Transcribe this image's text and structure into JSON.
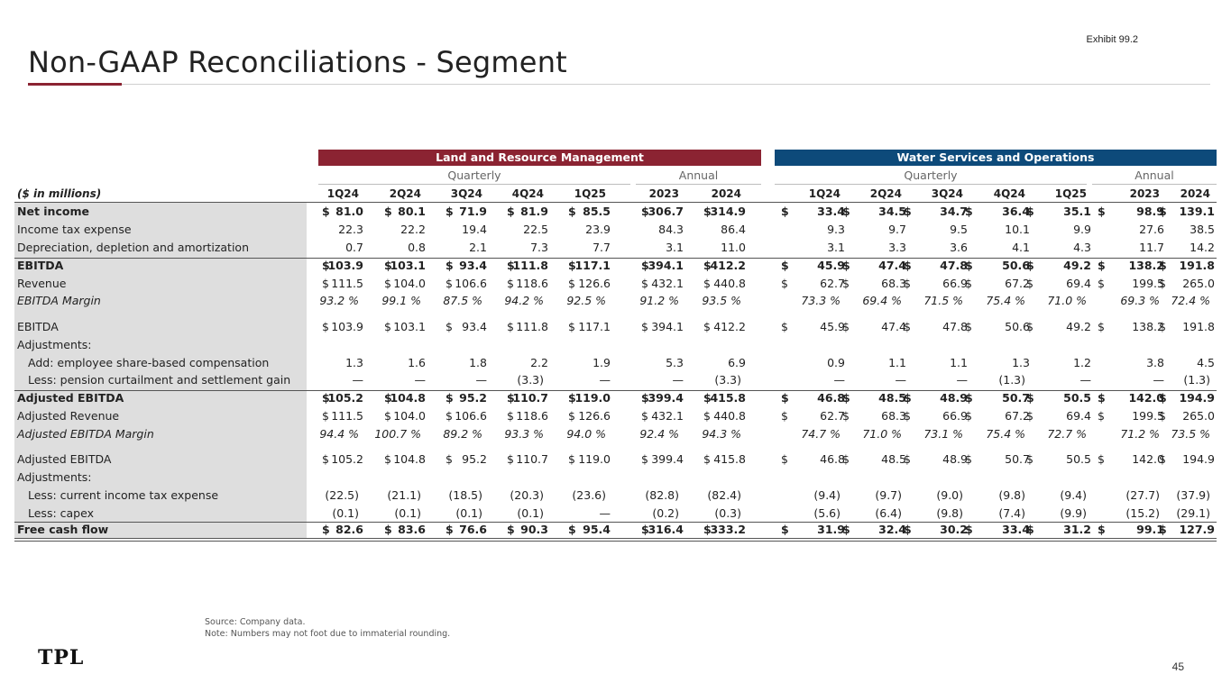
{
  "exhibit": "Exhibit 99.2",
  "title": "Non-GAAP Reconciliations - Segment",
  "segments": {
    "land": "Land and Resource Management",
    "water": "Water Services and Operations"
  },
  "subheads": {
    "quarterly": "Quarterly",
    "annual": "Annual"
  },
  "units_label": "($ in millions)",
  "columns": [
    "1Q24",
    "2Q24",
    "3Q24",
    "4Q24",
    "1Q25",
    "2023",
    "2024",
    "1Q24",
    "2Q24",
    "3Q24",
    "4Q24",
    "1Q25",
    "2023",
    "2024"
  ],
  "rows": [
    {
      "label": "Net income",
      "style": "bold",
      "dollar": true,
      "values": [
        "81.0",
        "80.1",
        "71.9",
        "81.9",
        "85.5",
        "306.7",
        "314.9",
        "33.4",
        "34.5",
        "34.7",
        "36.4",
        "35.1",
        "98.9",
        "139.1"
      ]
    },
    {
      "label": "Income tax expense",
      "style": "",
      "dollar": false,
      "values": [
        "22.3",
        "22.2",
        "19.4",
        "22.5",
        "23.9",
        "84.3",
        "86.4",
        "9.3",
        "9.7",
        "9.5",
        "10.1",
        "9.9",
        "27.6",
        "38.5"
      ]
    },
    {
      "label": "Depreciation, depletion and amortization",
      "style": "",
      "dollar": false,
      "values": [
        "0.7",
        "0.8",
        "2.1",
        "7.3",
        "7.7",
        "3.1",
        "11.0",
        "3.1",
        "3.3",
        "3.6",
        "4.1",
        "4.3",
        "11.7",
        "14.2"
      ]
    },
    {
      "label": "EBITDA",
      "style": "bold",
      "dollar": true,
      "values": [
        "103.9",
        "103.1",
        "93.4",
        "111.8",
        "117.1",
        "394.1",
        "412.2",
        "45.9",
        "47.4",
        "47.8",
        "50.6",
        "49.2",
        "138.2",
        "191.8"
      ]
    },
    {
      "label": "Revenue",
      "style": "",
      "dollar": true,
      "values": [
        "111.5",
        "104.0",
        "106.6",
        "118.6",
        "126.6",
        "432.1",
        "440.8",
        "62.7",
        "68.3",
        "66.9",
        "67.2",
        "69.4",
        "199.5",
        "265.0"
      ]
    },
    {
      "label": "EBITDA Margin",
      "style": "ital",
      "dollar": false,
      "values": [
        "93.2 %",
        "99.1 %",
        "87.5 %",
        "94.2 %",
        "92.5 %",
        "91.2 %",
        "93.5 %",
        "73.3 %",
        "69.4 %",
        "71.5 %",
        "75.4 %",
        "71.0 %",
        "69.3 %",
        "72.4 %"
      ]
    },
    {
      "label": "EBITDA",
      "style": "",
      "dollar": true,
      "values": [
        "103.9",
        "103.1",
        "93.4",
        "111.8",
        "117.1",
        "394.1",
        "412.2",
        "45.9",
        "47.4",
        "47.8",
        "50.6",
        "49.2",
        "138.2",
        "191.8"
      ]
    },
    {
      "label": "Adjustments:",
      "style": "",
      "dollar": false,
      "values": [
        "",
        "",
        "",
        "",
        "",
        "",
        "",
        "",
        "",
        "",
        "",
        "",
        "",
        ""
      ]
    },
    {
      "label": "Add: employee share-based compensation",
      "style": "indent",
      "dollar": false,
      "values": [
        "1.3",
        "1.6",
        "1.8",
        "2.2",
        "1.9",
        "5.3",
        "6.9",
        "0.9",
        "1.1",
        "1.1",
        "1.3",
        "1.2",
        "3.8",
        "4.5"
      ]
    },
    {
      "label": "Less: pension curtailment and settlement gain",
      "style": "indent",
      "dollar": false,
      "values": [
        "—",
        "—",
        "—",
        "(3.3)",
        "—",
        "—",
        "(3.3)",
        "—",
        "—",
        "—",
        "(1.3)",
        "—",
        "—",
        "(1.3)"
      ]
    },
    {
      "label": "Adjusted EBITDA",
      "style": "bold",
      "dollar": true,
      "values": [
        "105.2",
        "104.8",
        "95.2",
        "110.7",
        "119.0",
        "399.4",
        "415.8",
        "46.8",
        "48.5",
        "48.9",
        "50.7",
        "50.5",
        "142.0",
        "194.9"
      ]
    },
    {
      "label": "Adjusted Revenue",
      "style": "",
      "dollar": true,
      "values": [
        "111.5",
        "104.0",
        "106.6",
        "118.6",
        "126.6",
        "432.1",
        "440.8",
        "62.7",
        "68.3",
        "66.9",
        "67.2",
        "69.4",
        "199.5",
        "265.0"
      ]
    },
    {
      "label": "Adjusted EBITDA Margin",
      "style": "ital",
      "dollar": false,
      "values": [
        "94.4 %",
        "100.7 %",
        "89.2 %",
        "93.3 %",
        "94.0 %",
        "92.4 %",
        "94.3 %",
        "74.7 %",
        "71.0 %",
        "73.1 %",
        "75.4 %",
        "72.7 %",
        "71.2 %",
        "73.5 %"
      ]
    },
    {
      "label": "Adjusted EBITDA",
      "style": "",
      "dollar": true,
      "values": [
        "105.2",
        "104.8",
        "95.2",
        "110.7",
        "119.0",
        "399.4",
        "415.8",
        "46.8",
        "48.5",
        "48.9",
        "50.7",
        "50.5",
        "142.0",
        "194.9"
      ]
    },
    {
      "label": "Adjustments:",
      "style": "",
      "dollar": false,
      "values": [
        "",
        "",
        "",
        "",
        "",
        "",
        "",
        "",
        "",
        "",
        "",
        "",
        "",
        ""
      ]
    },
    {
      "label": "Less: current income tax expense",
      "style": "indent",
      "dollar": false,
      "values": [
        "(22.5)",
        "(21.1)",
        "(18.5)",
        "(20.3)",
        "(23.6)",
        "(82.8)",
        "(82.4)",
        "(9.4)",
        "(9.7)",
        "(9.0)",
        "(9.8)",
        "(9.4)",
        "(27.7)",
        "(37.9)"
      ]
    },
    {
      "label": "Less: capex",
      "style": "indent",
      "dollar": false,
      "values": [
        "(0.1)",
        "(0.1)",
        "(0.1)",
        "(0.1)",
        "—",
        "(0.2)",
        "(0.3)",
        "(5.6)",
        "(6.4)",
        "(9.8)",
        "(7.4)",
        "(9.9)",
        "(15.2)",
        "(29.1)"
      ]
    },
    {
      "label": "Free cash flow",
      "style": "bold",
      "dollar": true,
      "values": [
        "82.6",
        "83.6",
        "76.6",
        "90.3",
        "95.4",
        "316.4",
        "333.2",
        "31.9",
        "32.4",
        "30.2",
        "33.4",
        "31.2",
        "99.1",
        "127.9"
      ]
    }
  ],
  "dollar_sign": "$",
  "source": "Source: Company data.",
  "note": "Note: Numbers may not foot due to immaterial rounding.",
  "logo": "TPL",
  "page_number": "45"
}
